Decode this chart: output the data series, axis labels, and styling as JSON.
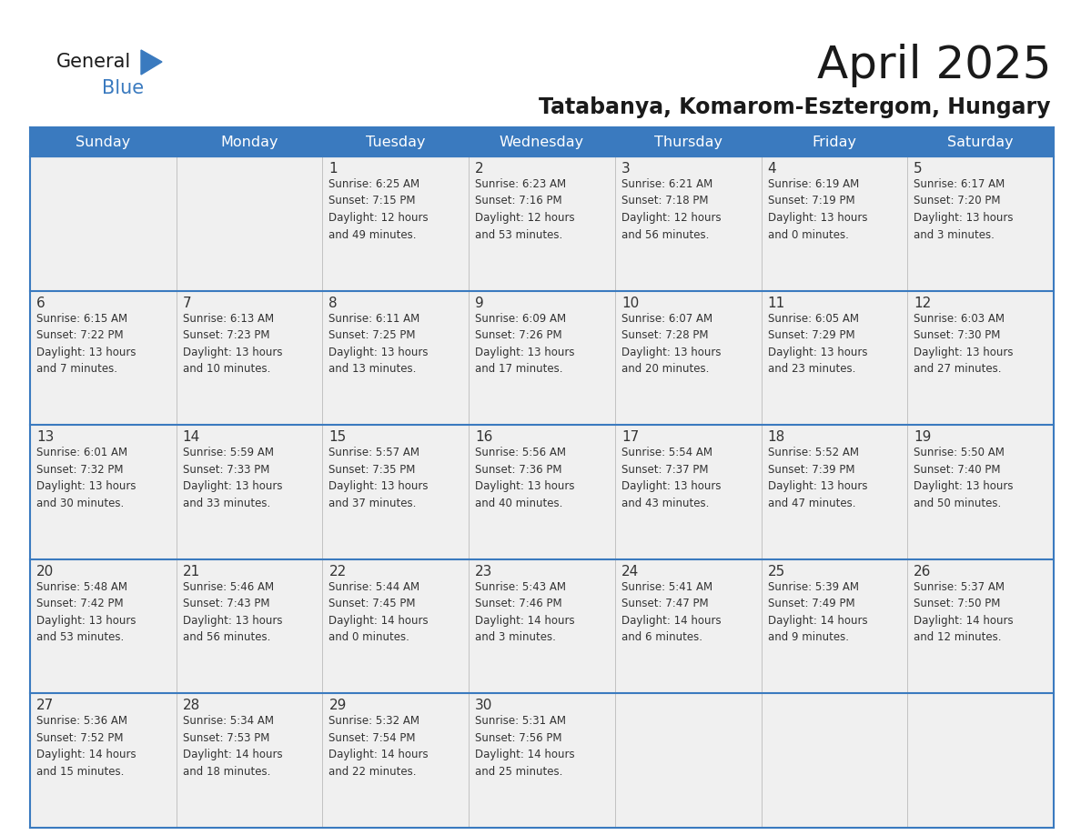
{
  "title": "April 2025",
  "subtitle": "Tatabanya, Komarom-Esztergom, Hungary",
  "days_of_week": [
    "Sunday",
    "Monday",
    "Tuesday",
    "Wednesday",
    "Thursday",
    "Friday",
    "Saturday"
  ],
  "header_bg": "#3a7abf",
  "header_text": "#ffffff",
  "row_bg_light": "#f0f0f0",
  "row_bg_white": "#ffffff",
  "separator_color": "#3a7abf",
  "text_color": "#333333",
  "calendar_data": [
    [
      {
        "day": null,
        "text": ""
      },
      {
        "day": null,
        "text": ""
      },
      {
        "day": 1,
        "text": "Sunrise: 6:25 AM\nSunset: 7:15 PM\nDaylight: 12 hours\nand 49 minutes."
      },
      {
        "day": 2,
        "text": "Sunrise: 6:23 AM\nSunset: 7:16 PM\nDaylight: 12 hours\nand 53 minutes."
      },
      {
        "day": 3,
        "text": "Sunrise: 6:21 AM\nSunset: 7:18 PM\nDaylight: 12 hours\nand 56 minutes."
      },
      {
        "day": 4,
        "text": "Sunrise: 6:19 AM\nSunset: 7:19 PM\nDaylight: 13 hours\nand 0 minutes."
      },
      {
        "day": 5,
        "text": "Sunrise: 6:17 AM\nSunset: 7:20 PM\nDaylight: 13 hours\nand 3 minutes."
      }
    ],
    [
      {
        "day": 6,
        "text": "Sunrise: 6:15 AM\nSunset: 7:22 PM\nDaylight: 13 hours\nand 7 minutes."
      },
      {
        "day": 7,
        "text": "Sunrise: 6:13 AM\nSunset: 7:23 PM\nDaylight: 13 hours\nand 10 minutes."
      },
      {
        "day": 8,
        "text": "Sunrise: 6:11 AM\nSunset: 7:25 PM\nDaylight: 13 hours\nand 13 minutes."
      },
      {
        "day": 9,
        "text": "Sunrise: 6:09 AM\nSunset: 7:26 PM\nDaylight: 13 hours\nand 17 minutes."
      },
      {
        "day": 10,
        "text": "Sunrise: 6:07 AM\nSunset: 7:28 PM\nDaylight: 13 hours\nand 20 minutes."
      },
      {
        "day": 11,
        "text": "Sunrise: 6:05 AM\nSunset: 7:29 PM\nDaylight: 13 hours\nand 23 minutes."
      },
      {
        "day": 12,
        "text": "Sunrise: 6:03 AM\nSunset: 7:30 PM\nDaylight: 13 hours\nand 27 minutes."
      }
    ],
    [
      {
        "day": 13,
        "text": "Sunrise: 6:01 AM\nSunset: 7:32 PM\nDaylight: 13 hours\nand 30 minutes."
      },
      {
        "day": 14,
        "text": "Sunrise: 5:59 AM\nSunset: 7:33 PM\nDaylight: 13 hours\nand 33 minutes."
      },
      {
        "day": 15,
        "text": "Sunrise: 5:57 AM\nSunset: 7:35 PM\nDaylight: 13 hours\nand 37 minutes."
      },
      {
        "day": 16,
        "text": "Sunrise: 5:56 AM\nSunset: 7:36 PM\nDaylight: 13 hours\nand 40 minutes."
      },
      {
        "day": 17,
        "text": "Sunrise: 5:54 AM\nSunset: 7:37 PM\nDaylight: 13 hours\nand 43 minutes."
      },
      {
        "day": 18,
        "text": "Sunrise: 5:52 AM\nSunset: 7:39 PM\nDaylight: 13 hours\nand 47 minutes."
      },
      {
        "day": 19,
        "text": "Sunrise: 5:50 AM\nSunset: 7:40 PM\nDaylight: 13 hours\nand 50 minutes."
      }
    ],
    [
      {
        "day": 20,
        "text": "Sunrise: 5:48 AM\nSunset: 7:42 PM\nDaylight: 13 hours\nand 53 minutes."
      },
      {
        "day": 21,
        "text": "Sunrise: 5:46 AM\nSunset: 7:43 PM\nDaylight: 13 hours\nand 56 minutes."
      },
      {
        "day": 22,
        "text": "Sunrise: 5:44 AM\nSunset: 7:45 PM\nDaylight: 14 hours\nand 0 minutes."
      },
      {
        "day": 23,
        "text": "Sunrise: 5:43 AM\nSunset: 7:46 PM\nDaylight: 14 hours\nand 3 minutes."
      },
      {
        "day": 24,
        "text": "Sunrise: 5:41 AM\nSunset: 7:47 PM\nDaylight: 14 hours\nand 6 minutes."
      },
      {
        "day": 25,
        "text": "Sunrise: 5:39 AM\nSunset: 7:49 PM\nDaylight: 14 hours\nand 9 minutes."
      },
      {
        "day": 26,
        "text": "Sunrise: 5:37 AM\nSunset: 7:50 PM\nDaylight: 14 hours\nand 12 minutes."
      }
    ],
    [
      {
        "day": 27,
        "text": "Sunrise: 5:36 AM\nSunset: 7:52 PM\nDaylight: 14 hours\nand 15 minutes."
      },
      {
        "day": 28,
        "text": "Sunrise: 5:34 AM\nSunset: 7:53 PM\nDaylight: 14 hours\nand 18 minutes."
      },
      {
        "day": 29,
        "text": "Sunrise: 5:32 AM\nSunset: 7:54 PM\nDaylight: 14 hours\nand 22 minutes."
      },
      {
        "day": 30,
        "text": "Sunrise: 5:31 AM\nSunset: 7:56 PM\nDaylight: 14 hours\nand 25 minutes."
      },
      {
        "day": null,
        "text": ""
      },
      {
        "day": null,
        "text": ""
      },
      {
        "day": null,
        "text": ""
      }
    ]
  ]
}
